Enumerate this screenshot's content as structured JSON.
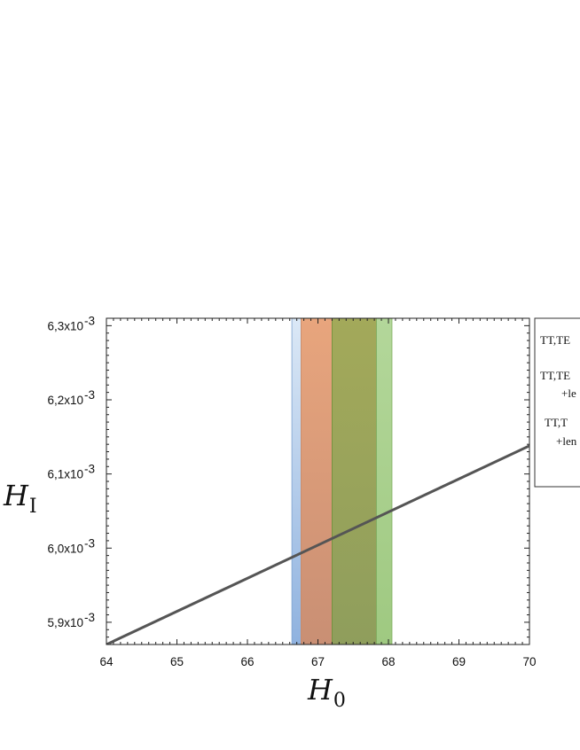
{
  "chart_data": {
    "type": "line",
    "xlabel_main": "H",
    "xlabel_sub": "0",
    "ylabel_main": "H",
    "ylabel_sub": "I",
    "xlim": [
      64,
      70
    ],
    "ylim": [
      0.00587,
      0.00631
    ],
    "x_ticks": [
      64,
      65,
      66,
      67,
      68,
      69,
      70
    ],
    "x_tick_labels": [
      "64",
      "65",
      "66",
      "67",
      "68",
      "69",
      "70"
    ],
    "y_ticks": [
      0.0059,
      0.006,
      0.0061,
      0.0062,
      0.0063
    ],
    "y_tick_mantissas": [
      "5,9x10",
      "6,0x10",
      "6,1x10",
      "6,2x10",
      "6,3x10"
    ],
    "y_tick_exponent": "-3",
    "series": [
      {
        "x": [
          64,
          70
        ],
        "y": [
          0.00587,
          0.006138
        ],
        "color": "#555555"
      }
    ],
    "bands": [
      {
        "x0": 66.63,
        "x1": 66.76,
        "color": "#cbdcef"
      },
      {
        "x0": 66.76,
        "x1": 67.2,
        "color": "#e3a07a"
      },
      {
        "x0": 67.2,
        "x1": 67.83,
        "color": "#99a65a"
      },
      {
        "x0": 67.83,
        "x1": 68.05,
        "color": "#a7d08c"
      }
    ],
    "band_shades": [
      {
        "x0": 66.63,
        "x1": 66.76,
        "color": "#9bbbe3"
      }
    ],
    "legend": {
      "placement": "right, clipped",
      "entries": [
        {
          "lines": [
            "TT,TE"
          ]
        },
        {
          "lines": [
            "TT,TE",
            "+le"
          ]
        },
        {
          "lines": [
            "TT,T",
            "+len"
          ]
        }
      ]
    }
  }
}
